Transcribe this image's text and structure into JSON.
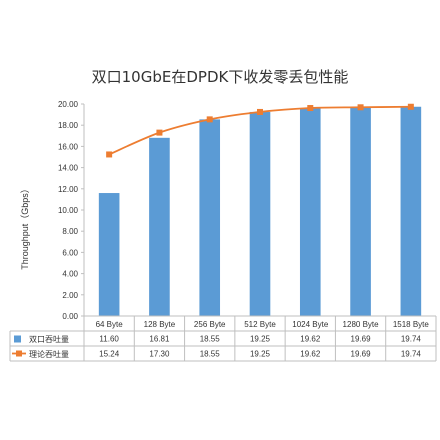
{
  "chart_data": {
    "type": "bar",
    "title": "双口10GbE在DPDK下收发零丢包性能",
    "ylabel": "Throughput（Gbps）",
    "xlabel": "",
    "ylim": [
      0,
      20
    ],
    "ytick_step": 2,
    "yticks": [
      "0.00",
      "2.00",
      "4.00",
      "6.00",
      "8.00",
      "10.00",
      "12.00",
      "14.00",
      "16.00",
      "18.00",
      "20.00"
    ],
    "categories": [
      "64 Byte",
      "128 Byte",
      "256 Byte",
      "512 Byte",
      "1024 Byte",
      "1280 Byte",
      "1518 Byte"
    ],
    "grid": false,
    "legend": "data-table",
    "series": [
      {
        "name": "双口吞吐量",
        "type": "bar",
        "color": "#5B9BD5",
        "values": [
          11.6,
          16.81,
          18.55,
          19.25,
          19.62,
          19.69,
          19.74
        ],
        "labels": [
          "11.60",
          "16.81",
          "18.55",
          "19.25",
          "19.62",
          "19.69",
          "19.74"
        ]
      },
      {
        "name": "理论吞吐量",
        "type": "line",
        "color": "#ED7D31",
        "values": [
          15.24,
          17.3,
          18.55,
          19.25,
          19.62,
          19.69,
          19.74
        ],
        "labels": [
          "15.24",
          "17.30",
          "18.55",
          "19.25",
          "19.62",
          "19.69",
          "19.74"
        ]
      }
    ]
  }
}
